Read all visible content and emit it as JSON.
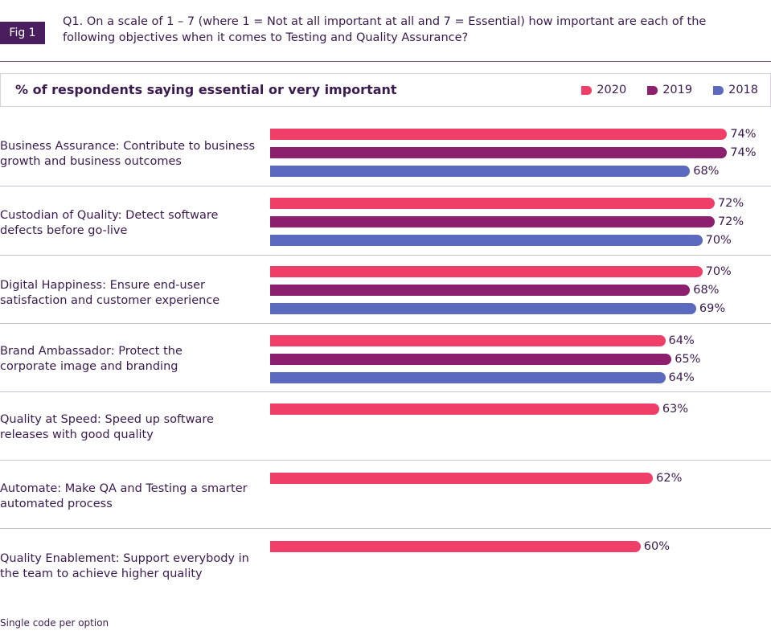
{
  "figure": {
    "badge": "Fig 1",
    "question_line1": "Q1. On a scale of 1 – 7 (where 1 = Not at all important at all and 7 = Essential) how important are each of the",
    "question_line2": "following objectives when it comes to Testing and Quality Assurance?",
    "subheading": "% of respondents saying essential or very important",
    "footnote": "Single code per option"
  },
  "chart_data": {
    "type": "bar",
    "orientation": "horizontal",
    "title": "% of respondents saying essential or very important",
    "legend_position": "top-right",
    "grid": false,
    "value_suffix": "%",
    "xlim": [
      0,
      100
    ],
    "categories": [
      [
        "Business Assurance: Contribute to business",
        "growth and business outcomes"
      ],
      [
        "Custodian of Quality: Detect software",
        "defects before go-live"
      ],
      [
        "Digital Happiness: Ensure end-user",
        "satisfaction and customer experience"
      ],
      [
        "Brand Ambassador: Protect the",
        "corporate image and branding"
      ],
      [
        "Quality at Speed: Speed up software",
        "releases with good quality"
      ],
      [
        "Automate: Make QA and Testing a smarter",
        "automated process"
      ],
      [
        "Quality Enablement: Support everybody in",
        "the team to achieve higher quality"
      ]
    ],
    "series": [
      {
        "name": "2020",
        "color": "#ef3e68",
        "values": [
          74,
          72,
          70,
          64,
          63,
          62,
          60
        ]
      },
      {
        "name": "2019",
        "color": "#8c1f6e",
        "values": [
          74,
          72,
          68,
          65,
          null,
          null,
          null
        ]
      },
      {
        "name": "2018",
        "color": "#5b6abf",
        "values": [
          68,
          70,
          69,
          64,
          null,
          null,
          null
        ]
      }
    ]
  }
}
